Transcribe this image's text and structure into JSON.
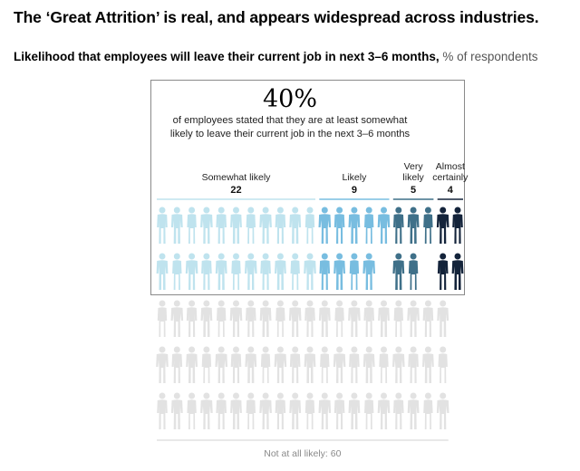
{
  "title": "The ‘Great Attrition’ is real, and appears widespread across industries.",
  "subtitle": {
    "main": "Likelihood that employees will leave their current job in next 3–6 months,",
    "unit": "% of respondents"
  },
  "highlight": {
    "number": "40%",
    "line1": "of employees stated that they are at least somewhat",
    "line2": "likely to leave their current job in the next 3–6 months"
  },
  "chart_data": {
    "type": "pictograph",
    "unit": "% of respondents",
    "categories": [
      {
        "label_lines": [
          "Somewhat likely"
        ],
        "value": 22,
        "color": "#bfe3ee"
      },
      {
        "label_lines": [
          "Likely"
        ],
        "value": 9,
        "color": "#78bde0"
      },
      {
        "label_lines": [
          "Very",
          "likely"
        ],
        "value": 5,
        "color": "#3f7089"
      },
      {
        "label_lines": [
          "Almost",
          "certainly"
        ],
        "value": 4,
        "color": "#13233a"
      }
    ],
    "remainder": {
      "label": "Not at all likely: 60",
      "value": 60,
      "color": "#e2e2e2"
    }
  }
}
